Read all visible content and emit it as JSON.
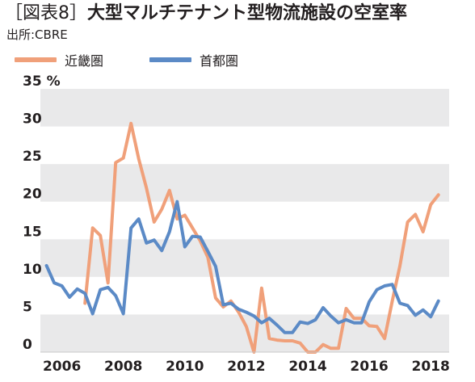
{
  "header": {
    "tag": "［図表8］",
    "title": "大型マルチテナント型物流施設の空室率",
    "source": "出所:CBRE"
  },
  "colors": {
    "kinki": "#f0a07a",
    "shutoken": "#5b8ac6",
    "band": "#e9e9ea",
    "text": "#231f20"
  },
  "chart_data": {
    "type": "line",
    "title": "大型マルチテナント型物流施設の空室率",
    "xlabel": "",
    "ylabel": "",
    "y_unit": "%",
    "xlim": [
      2005.3,
      2018.6
    ],
    "ylim": [
      0,
      35
    ],
    "y_ticks": [
      0,
      5,
      10,
      15,
      20,
      25,
      30,
      35
    ],
    "y_tick_labels": [
      "0",
      "5",
      "10",
      "15",
      "20",
      "25",
      "30",
      "35 %"
    ],
    "x_ticks": [
      2006,
      2008,
      2010,
      2012,
      2014,
      2016,
      2018
    ],
    "x_tick_labels": [
      "2006",
      "2008",
      "2010",
      "2012",
      "2014",
      "2016",
      "2018"
    ],
    "grid": "alternating horizontal bands",
    "legend_position": "top-left",
    "series": [
      {
        "name": "近畿圏",
        "color": "#f0a07a",
        "x": [
          2006.75,
          2007.0,
          2007.25,
          2007.5,
          2007.75,
          2008.0,
          2008.25,
          2008.5,
          2008.75,
          2009.0,
          2009.25,
          2009.5,
          2009.75,
          2010.0,
          2010.25,
          2010.5,
          2010.75,
          2011.0,
          2011.25,
          2011.5,
          2011.75,
          2012.0,
          2012.25,
          2012.5,
          2012.75,
          2013.0,
          2013.25,
          2013.5,
          2013.75,
          2014.0,
          2014.25,
          2014.5,
          2014.75,
          2015.0,
          2015.25,
          2015.5,
          2015.75,
          2016.0,
          2016.25,
          2016.5,
          2016.75,
          2017.0,
          2017.25,
          2017.5,
          2017.75,
          2018.0,
          2018.25
        ],
        "values": [
          6.5,
          16.5,
          15.5,
          9.2,
          25.2,
          25.8,
          30.4,
          25.7,
          21.8,
          17.3,
          19.0,
          21.5,
          17.7,
          18.2,
          16.5,
          14.8,
          12.6,
          7.2,
          6.0,
          6.8,
          5.3,
          3.4,
          0.0,
          8.5,
          1.8,
          1.6,
          1.5,
          1.5,
          1.2,
          0.0,
          0.0,
          1.0,
          0.5,
          0.5,
          5.8,
          4.5,
          4.5,
          3.5,
          3.4,
          1.8,
          6.8,
          11.5,
          17.3,
          18.3,
          16.0,
          19.6,
          20.9
        ]
      },
      {
        "name": "首都圏",
        "color": "#5b8ac6",
        "x": [
          2005.5,
          2005.75,
          2006.0,
          2006.25,
          2006.5,
          2006.75,
          2007.0,
          2007.25,
          2007.5,
          2007.75,
          2008.0,
          2008.25,
          2008.5,
          2008.75,
          2009.0,
          2009.25,
          2009.5,
          2009.75,
          2010.0,
          2010.25,
          2010.5,
          2010.75,
          2011.0,
          2011.25,
          2011.5,
          2011.75,
          2012.0,
          2012.25,
          2012.5,
          2012.75,
          2013.0,
          2013.25,
          2013.5,
          2013.75,
          2014.0,
          2014.25,
          2014.5,
          2014.75,
          2015.0,
          2015.25,
          2015.5,
          2015.75,
          2016.0,
          2016.25,
          2016.5,
          2016.75,
          2017.0,
          2017.25,
          2017.5,
          2017.75,
          2018.0,
          2018.25
        ],
        "values": [
          11.5,
          9.2,
          8.8,
          7.3,
          8.4,
          7.8,
          5.1,
          8.3,
          8.6,
          7.5,
          5.1,
          16.5,
          17.7,
          14.5,
          14.9,
          13.5,
          16.0,
          20.0,
          14.0,
          15.4,
          15.3,
          13.4,
          11.4,
          6.3,
          6.5,
          5.7,
          5.3,
          4.8,
          3.9,
          4.5,
          3.6,
          2.6,
          2.6,
          4.0,
          3.8,
          4.3,
          5.9,
          4.8,
          3.9,
          4.3,
          3.9,
          3.9,
          6.7,
          8.3,
          8.8,
          9.0,
          6.5,
          6.2,
          4.9,
          5.6,
          4.7,
          6.8
        ]
      }
    ]
  }
}
